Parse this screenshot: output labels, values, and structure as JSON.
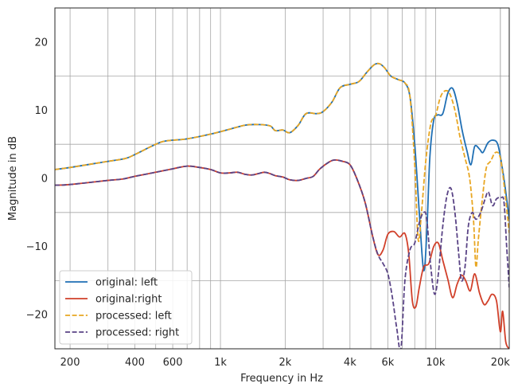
{
  "chart_data": {
    "type": "line",
    "title": "",
    "xlabel": "Frequency in Hz",
    "ylabel": "Magnitude in dB",
    "xscale": "log",
    "xlim": [
      170,
      22000
    ],
    "ylim": [
      -25,
      25
    ],
    "grid": true,
    "legend_position": "lower-left",
    "x_ticks": [
      {
        "value": 200,
        "label": "200"
      },
      {
        "value": 400,
        "label": "400"
      },
      {
        "value": 600,
        "label": "600"
      },
      {
        "value": 1000,
        "label": "1k"
      },
      {
        "value": 2000,
        "label": "2k"
      },
      {
        "value": 4000,
        "label": "4k"
      },
      {
        "value": 6000,
        "label": "6k"
      },
      {
        "value": 10000,
        "label": "10k"
      },
      {
        "value": 20000,
        "label": "20k"
      }
    ],
    "y_ticks": [
      {
        "value": -20,
        "label": "−20"
      },
      {
        "value": -10,
        "label": "−10"
      },
      {
        "value": 0,
        "label": "0"
      },
      {
        "value": 10,
        "label": "10"
      },
      {
        "value": 20,
        "label": "20"
      }
    ],
    "series": [
      {
        "name": "original: left",
        "color": "#1f6fb4",
        "dash": "solid",
        "points": [
          [
            170,
            1.3
          ],
          [
            200,
            1.6
          ],
          [
            300,
            2.5
          ],
          [
            360,
            2.9
          ],
          [
            400,
            3.5
          ],
          [
            500,
            5.0
          ],
          [
            560,
            5.5
          ],
          [
            700,
            5.8
          ],
          [
            900,
            6.5
          ],
          [
            1100,
            7.2
          ],
          [
            1300,
            7.8
          ],
          [
            1500,
            7.9
          ],
          [
            1700,
            7.7
          ],
          [
            1800,
            7.0
          ],
          [
            1950,
            7.1
          ],
          [
            2100,
            6.7
          ],
          [
            2300,
            7.8
          ],
          [
            2500,
            9.5
          ],
          [
            2800,
            9.5
          ],
          [
            3000,
            9.8
          ],
          [
            3300,
            11.2
          ],
          [
            3600,
            13.3
          ],
          [
            4000,
            13.8
          ],
          [
            4400,
            14.2
          ],
          [
            4800,
            15.6
          ],
          [
            5200,
            16.7
          ],
          [
            5500,
            16.8
          ],
          [
            5800,
            16.2
          ],
          [
            6200,
            15.0
          ],
          [
            6700,
            14.5
          ],
          [
            7200,
            14.0
          ],
          [
            7600,
            12.0
          ],
          [
            8000,
            5.0
          ],
          [
            8400,
            -5.0
          ],
          [
            8800,
            -13.5
          ],
          [
            9100,
            -8.0
          ],
          [
            9400,
            3.0
          ],
          [
            9800,
            8.5
          ],
          [
            10200,
            9.3
          ],
          [
            10800,
            9.5
          ],
          [
            11400,
            12.5
          ],
          [
            12000,
            13.2
          ],
          [
            12600,
            11.0
          ],
          [
            13300,
            7.0
          ],
          [
            14000,
            4.0
          ],
          [
            14600,
            2.0
          ],
          [
            15200,
            4.7
          ],
          [
            16000,
            4.3
          ],
          [
            16600,
            3.8
          ],
          [
            17500,
            5.2
          ],
          [
            18500,
            5.6
          ],
          [
            19500,
            4.9
          ],
          [
            20500,
            1.2
          ],
          [
            21200,
            -2.0
          ],
          [
            22000,
            -6.0
          ]
        ]
      },
      {
        "name": "original:right",
        "color": "#d1402a",
        "dash": "solid",
        "points": [
          [
            170,
            -1.0
          ],
          [
            200,
            -0.9
          ],
          [
            300,
            -0.3
          ],
          [
            350,
            -0.1
          ],
          [
            400,
            0.3
          ],
          [
            500,
            0.9
          ],
          [
            600,
            1.4
          ],
          [
            700,
            1.8
          ],
          [
            800,
            1.6
          ],
          [
            900,
            1.3
          ],
          [
            1000,
            0.8
          ],
          [
            1100,
            0.8
          ],
          [
            1200,
            0.9
          ],
          [
            1300,
            0.6
          ],
          [
            1400,
            0.5
          ],
          [
            1500,
            0.7
          ],
          [
            1600,
            0.9
          ],
          [
            1700,
            0.7
          ],
          [
            1800,
            0.4
          ],
          [
            1950,
            0.2
          ],
          [
            2100,
            -0.2
          ],
          [
            2300,
            -0.3
          ],
          [
            2500,
            0.0
          ],
          [
            2700,
            0.3
          ],
          [
            2900,
            1.4
          ],
          [
            3200,
            2.4
          ],
          [
            3400,
            2.7
          ],
          [
            3700,
            2.5
          ],
          [
            4000,
            2.0
          ],
          [
            4300,
            0.0
          ],
          [
            4700,
            -3.5
          ],
          [
            5100,
            -8.5
          ],
          [
            5400,
            -11.2
          ],
          [
            5700,
            -10.5
          ],
          [
            6000,
            -8.2
          ],
          [
            6400,
            -7.8
          ],
          [
            6800,
            -8.6
          ],
          [
            7200,
            -8.1
          ],
          [
            7500,
            -11.0
          ],
          [
            7800,
            -18.0
          ],
          [
            8100,
            -18.8
          ],
          [
            8400,
            -16.0
          ],
          [
            8800,
            -13.0
          ],
          [
            9300,
            -12.5
          ],
          [
            9800,
            -10.0
          ],
          [
            10300,
            -9.5
          ],
          [
            10800,
            -12.0
          ],
          [
            11400,
            -14.8
          ],
          [
            12000,
            -17.5
          ],
          [
            12600,
            -15.5
          ],
          [
            13200,
            -14.2
          ],
          [
            13800,
            -15.0
          ],
          [
            14500,
            -16.5
          ],
          [
            15200,
            -14.0
          ],
          [
            16000,
            -16.8
          ],
          [
            16800,
            -18.5
          ],
          [
            17500,
            -18.0
          ],
          [
            18300,
            -17.0
          ],
          [
            19200,
            -18.0
          ],
          [
            20000,
            -22.5
          ],
          [
            20500,
            -19.5
          ],
          [
            21200,
            -24.0
          ],
          [
            22000,
            -25.0
          ]
        ]
      },
      {
        "name": "processed: left",
        "color": "#e8a622",
        "dash": "dashed",
        "points": [
          [
            170,
            1.3
          ],
          [
            200,
            1.6
          ],
          [
            300,
            2.5
          ],
          [
            360,
            2.9
          ],
          [
            400,
            3.5
          ],
          [
            500,
            5.0
          ],
          [
            560,
            5.5
          ],
          [
            700,
            5.8
          ],
          [
            900,
            6.5
          ],
          [
            1100,
            7.2
          ],
          [
            1300,
            7.8
          ],
          [
            1500,
            7.9
          ],
          [
            1700,
            7.7
          ],
          [
            1800,
            7.0
          ],
          [
            1950,
            7.1
          ],
          [
            2100,
            6.7
          ],
          [
            2300,
            7.8
          ],
          [
            2500,
            9.5
          ],
          [
            2800,
            9.5
          ],
          [
            3000,
            9.8
          ],
          [
            3300,
            11.2
          ],
          [
            3600,
            13.3
          ],
          [
            4000,
            13.8
          ],
          [
            4400,
            14.2
          ],
          [
            4800,
            15.6
          ],
          [
            5200,
            16.7
          ],
          [
            5500,
            16.8
          ],
          [
            5800,
            16.2
          ],
          [
            6200,
            15.0
          ],
          [
            6700,
            14.5
          ],
          [
            7200,
            14.0
          ],
          [
            7600,
            12.0
          ],
          [
            8000,
            2.0
          ],
          [
            8300,
            -9.0
          ],
          [
            8600,
            -5.0
          ],
          [
            9000,
            2.5
          ],
          [
            9500,
            8.0
          ],
          [
            10000,
            9.2
          ],
          [
            10500,
            11.8
          ],
          [
            11000,
            12.8
          ],
          [
            11600,
            12.5
          ],
          [
            12300,
            10.0
          ],
          [
            13000,
            6.0
          ],
          [
            13700,
            3.0
          ],
          [
            14400,
            0.0
          ],
          [
            15000,
            -6.0
          ],
          [
            15400,
            -13.0
          ],
          [
            15800,
            -9.0
          ],
          [
            16500,
            -3.0
          ],
          [
            17200,
            1.5
          ],
          [
            18000,
            2.5
          ],
          [
            19000,
            3.8
          ],
          [
            20000,
            3.0
          ],
          [
            21000,
            -2.0
          ],
          [
            22000,
            -8.0
          ]
        ]
      },
      {
        "name": "processed: right",
        "color": "#5a4486",
        "dash": "dashed",
        "points": [
          [
            170,
            -1.0
          ],
          [
            200,
            -0.9
          ],
          [
            300,
            -0.3
          ],
          [
            350,
            -0.1
          ],
          [
            400,
            0.3
          ],
          [
            500,
            0.9
          ],
          [
            600,
            1.4
          ],
          [
            700,
            1.8
          ],
          [
            800,
            1.6
          ],
          [
            900,
            1.3
          ],
          [
            1000,
            0.8
          ],
          [
            1100,
            0.8
          ],
          [
            1200,
            0.9
          ],
          [
            1300,
            0.6
          ],
          [
            1400,
            0.5
          ],
          [
            1500,
            0.7
          ],
          [
            1600,
            0.9
          ],
          [
            1700,
            0.7
          ],
          [
            1800,
            0.4
          ],
          [
            1950,
            0.2
          ],
          [
            2100,
            -0.2
          ],
          [
            2300,
            -0.3
          ],
          [
            2500,
            0.0
          ],
          [
            2700,
            0.3
          ],
          [
            2900,
            1.4
          ],
          [
            3200,
            2.4
          ],
          [
            3400,
            2.7
          ],
          [
            3700,
            2.5
          ],
          [
            4000,
            2.0
          ],
          [
            4300,
            0.0
          ],
          [
            4700,
            -3.5
          ],
          [
            5100,
            -8.5
          ],
          [
            5400,
            -11.2
          ],
          [
            5700,
            -12.5
          ],
          [
            6000,
            -14.0
          ],
          [
            6300,
            -17.5
          ],
          [
            6600,
            -22.0
          ],
          [
            6900,
            -25.0
          ],
          [
            7200,
            -15.0
          ],
          [
            7600,
            -10.5
          ],
          [
            8000,
            -9.5
          ],
          [
            8400,
            -6.5
          ],
          [
            8800,
            -5.0
          ],
          [
            9100,
            -6.0
          ],
          [
            9500,
            -13.0
          ],
          [
            9900,
            -17.0
          ],
          [
            10300,
            -14.0
          ],
          [
            10800,
            -7.0
          ],
          [
            11300,
            -2.5
          ],
          [
            11800,
            -1.5
          ],
          [
            12300,
            -5.0
          ],
          [
            12800,
            -11.0
          ],
          [
            13200,
            -15.0
          ],
          [
            13700,
            -13.0
          ],
          [
            14200,
            -7.0
          ],
          [
            14800,
            -5.0
          ],
          [
            15400,
            -6.0
          ],
          [
            16200,
            -5.0
          ],
          [
            17000,
            -3.0
          ],
          [
            17600,
            -2.0
          ],
          [
            18400,
            -4.0
          ],
          [
            19200,
            -3.0
          ],
          [
            20200,
            -2.8
          ],
          [
            20800,
            -3.5
          ],
          [
            21400,
            -10.0
          ],
          [
            22000,
            -16.0
          ]
        ]
      }
    ]
  }
}
